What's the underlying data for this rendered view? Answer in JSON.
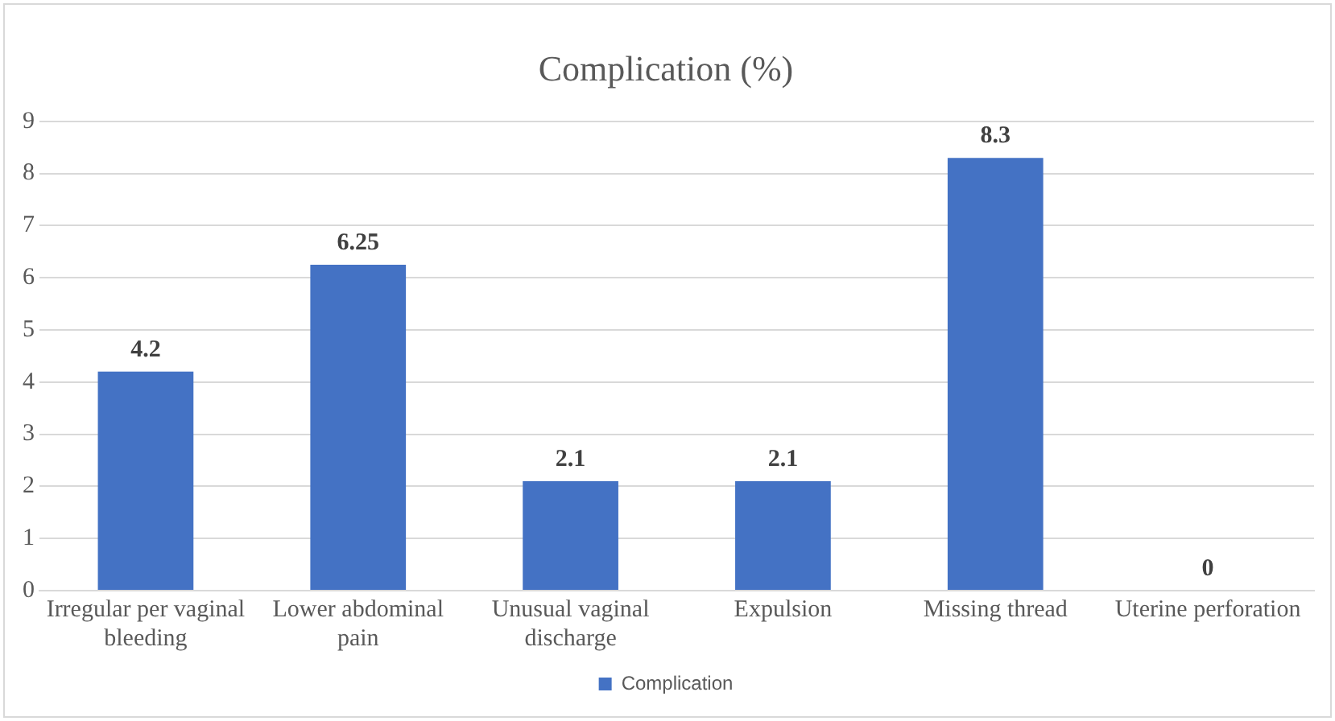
{
  "chart_data": {
    "type": "bar",
    "title": "Complication (%)",
    "categories": [
      "Irregular per vaginal bleeding",
      "Lower abdominal pain",
      "Unusual vaginal discharge",
      "Expulsion",
      "Missing thread",
      "Uterine perforation"
    ],
    "series": [
      {
        "name": "Complication",
        "color": "#4472c4",
        "values": [
          4.2,
          6.25,
          2.1,
          2.1,
          8.3,
          0
        ]
      }
    ],
    "ylim": [
      0,
      9
    ],
    "yticks": [
      0,
      1,
      2,
      3,
      4,
      5,
      6,
      7,
      8,
      9
    ],
    "grid": "y",
    "legend": "bottom",
    "data_labels": true
  }
}
